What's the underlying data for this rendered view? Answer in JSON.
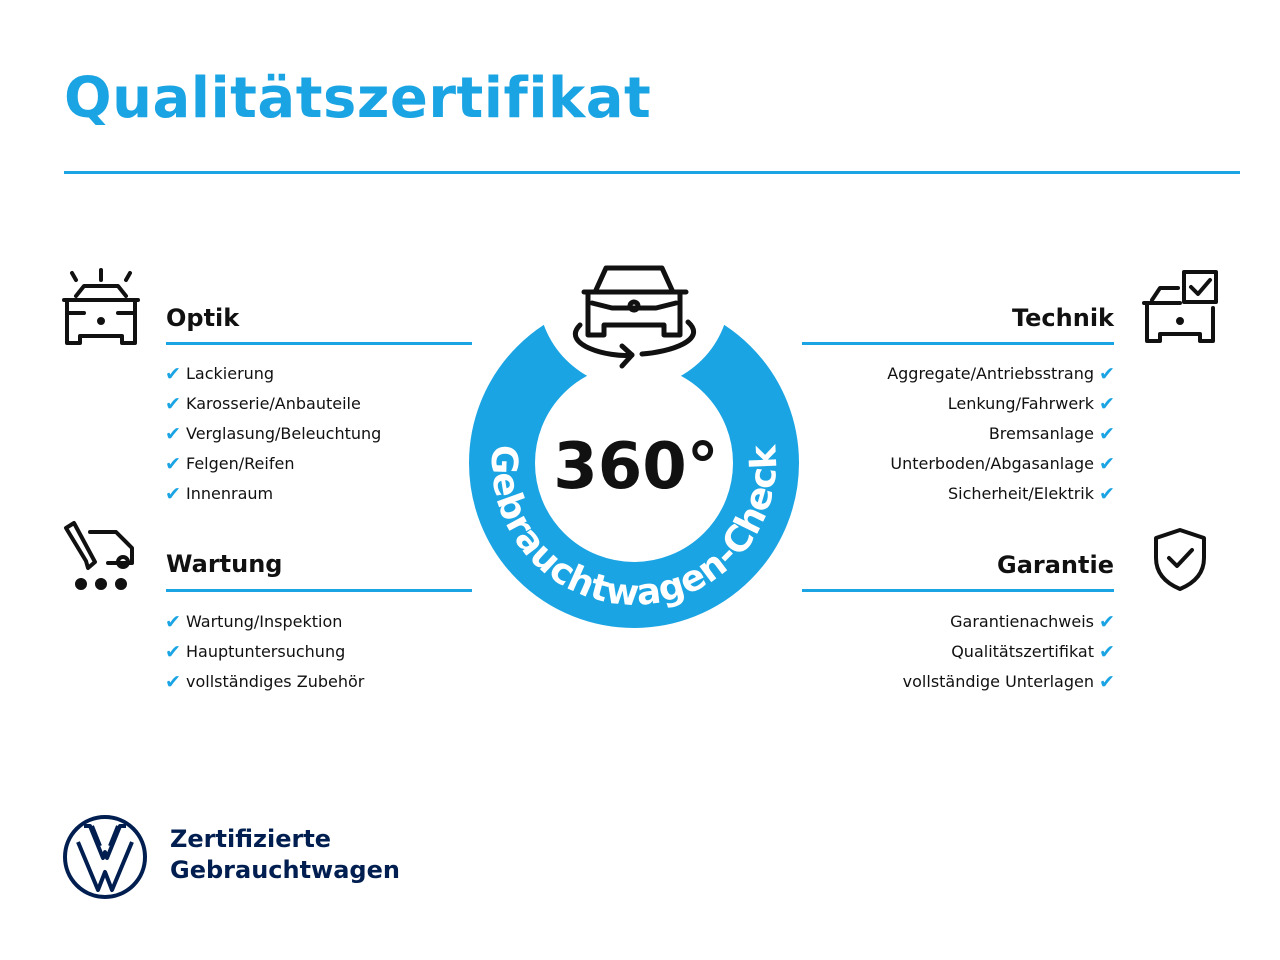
{
  "title": "Qualitätszertifikat",
  "colors": {
    "accent": "#1ba4e3",
    "brand": "#001e50"
  },
  "center": {
    "value": "360°",
    "ring_text": "Gebrauchtwagen-Check",
    "icon": "car-360-rotate-icon"
  },
  "sections": {
    "optik": {
      "heading": "Optik",
      "icon": "car-lights-icon",
      "items": [
        "Lackierung",
        "Karosserie/Anbauteile",
        "Verglasung/Beleuchtung",
        "Felgen/Reifen",
        "Innenraum"
      ]
    },
    "wartung": {
      "heading": "Wartung",
      "icon": "service-van-pencil-icon",
      "items": [
        "Wartung/Inspektion",
        "Hauptuntersuchung",
        "vollständiges Zubehör"
      ]
    },
    "technik": {
      "heading": "Technik",
      "icon": "car-checkbox-icon",
      "items": [
        "Aggregate/Antriebsstrang",
        "Lenkung/Fahrwerk",
        "Bremsanlage",
        "Unterboden/Abgasanlage",
        "Sicherheit/Elektrik"
      ]
    },
    "garantie": {
      "heading": "Garantie",
      "icon": "shield-check-icon",
      "items": [
        "Garantienachweis",
        "Qualitätszertifikat",
        "vollständige Unterlagen"
      ]
    }
  },
  "check_glyph": "✔",
  "footer": {
    "logo": "VW",
    "line1": "Zertifizierte",
    "line2": "Gebrauchtwagen"
  }
}
